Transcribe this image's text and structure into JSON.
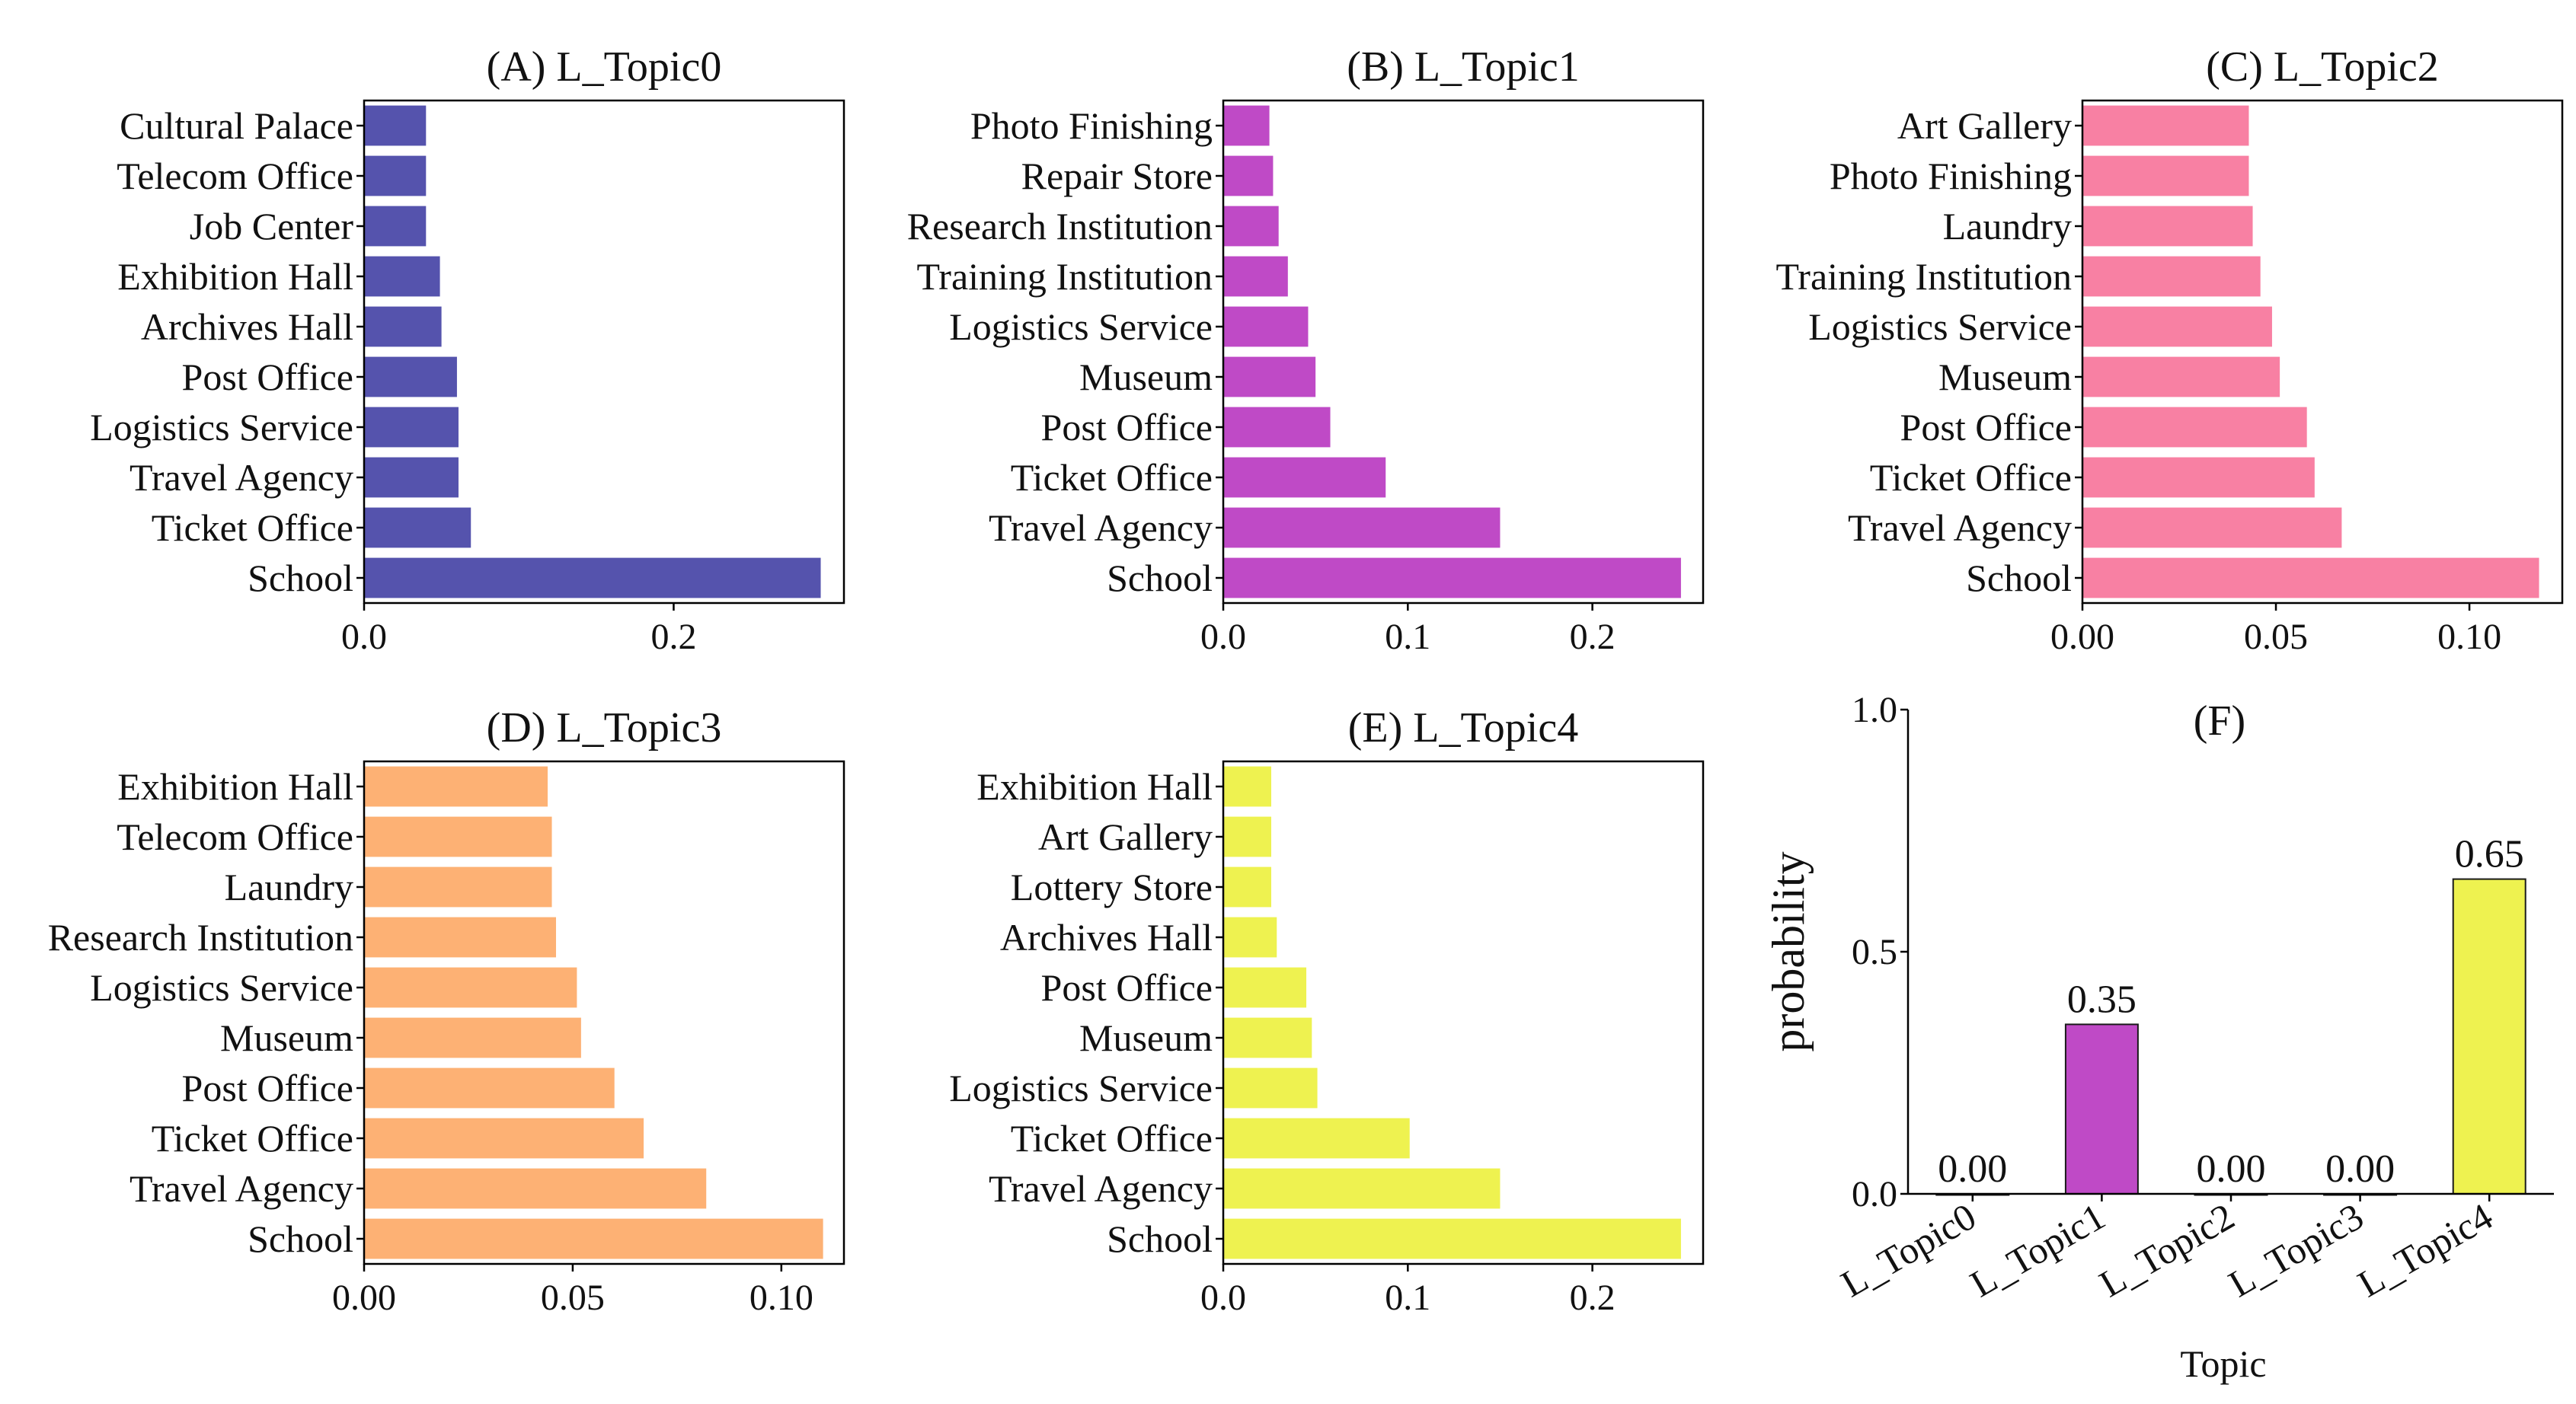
{
  "chart_data": [
    {
      "type": "bar",
      "orientation": "horizontal",
      "title": "(A) L_Topic0",
      "color": "#5553ad",
      "categories": [
        "Cultural Palace",
        "Telecom Office",
        "Job Center",
        "Exhibition Hall",
        "Archives Hall",
        "Post Office",
        "Logistics Service",
        "Travel Agency",
        "Ticket Office",
        "School"
      ],
      "values": [
        0.04,
        0.04,
        0.04,
        0.049,
        0.05,
        0.06,
        0.061,
        0.061,
        0.069,
        0.295
      ],
      "xlim": [
        0,
        0.31
      ],
      "ticks": [
        0.0,
        0.2
      ],
      "tick_labels": [
        "0.0",
        "0.2"
      ]
    },
    {
      "type": "bar",
      "orientation": "horizontal",
      "title": "(B) L_Topic1",
      "color": "#bf4ac6",
      "categories": [
        "Photo Finishing",
        "Repair Store",
        "Research Institution",
        "Training Institution",
        "Logistics Service",
        "Museum",
        "Post Office",
        "Ticket Office",
        "Travel Agency",
        "School"
      ],
      "values": [
        0.025,
        0.027,
        0.03,
        0.035,
        0.046,
        0.05,
        0.058,
        0.088,
        0.15,
        0.248
      ],
      "xlim": [
        0,
        0.26
      ],
      "ticks": [
        0.0,
        0.1,
        0.2
      ],
      "tick_labels": [
        "0.0",
        "0.1",
        "0.2"
      ]
    },
    {
      "type": "bar",
      "orientation": "horizontal",
      "title": "(C) L_Topic2",
      "color": "#f880a3",
      "categories": [
        "Art Gallery",
        "Photo Finishing",
        "Laundry",
        "Training Institution",
        "Logistics Service",
        "Museum",
        "Post Office",
        "Ticket Office",
        "Travel Agency",
        "School"
      ],
      "values": [
        0.043,
        0.043,
        0.044,
        0.046,
        0.049,
        0.051,
        0.058,
        0.06,
        0.067,
        0.118
      ],
      "xlim": [
        0,
        0.124
      ],
      "ticks": [
        0.0,
        0.05,
        0.1
      ],
      "tick_labels": [
        "0.00",
        "0.05",
        "0.10"
      ]
    },
    {
      "type": "bar",
      "orientation": "horizontal",
      "title": "(D) L_Topic3",
      "color": "#fdb174",
      "categories": [
        "Exhibition Hall",
        "Telecom Office",
        "Laundry",
        "Research Institution",
        "Logistics Service",
        "Museum",
        "Post Office",
        "Ticket Office",
        "Travel Agency",
        "School"
      ],
      "values": [
        0.044,
        0.045,
        0.045,
        0.046,
        0.051,
        0.052,
        0.06,
        0.067,
        0.082,
        0.11
      ],
      "xlim": [
        0,
        0.115
      ],
      "ticks": [
        0.0,
        0.05,
        0.1
      ],
      "tick_labels": [
        "0.00",
        "0.05",
        "0.10"
      ]
    },
    {
      "type": "bar",
      "orientation": "horizontal",
      "title": "(E) L_Topic4",
      "color": "#eef250",
      "categories": [
        "Exhibition Hall",
        "Art Gallery",
        "Lottery Store",
        "Archives Hall",
        "Post Office",
        "Museum",
        "Logistics Service",
        "Ticket Office",
        "Travel Agency",
        "School"
      ],
      "values": [
        0.026,
        0.026,
        0.026,
        0.029,
        0.045,
        0.048,
        0.051,
        0.101,
        0.15,
        0.248
      ],
      "xlim": [
        0,
        0.26
      ],
      "ticks": [
        0.0,
        0.1,
        0.2
      ],
      "tick_labels": [
        "0.0",
        "0.1",
        "0.2"
      ]
    },
    {
      "type": "bar",
      "orientation": "vertical",
      "title": "(F)",
      "categories": [
        "L_Topic0",
        "L_Topic1",
        "L_Topic2",
        "L_Topic3",
        "L_Topic4"
      ],
      "values": [
        0.0,
        0.35,
        0.0,
        0.0,
        0.65
      ],
      "data_labels": [
        "0.00",
        "0.35",
        "0.00",
        "0.00",
        "0.65"
      ],
      "colors": [
        "#5553ad",
        "#bf4ac6",
        "#f880a3",
        "#fdb174",
        "#eef250"
      ],
      "xlabel": "Topic",
      "ylabel": "probability",
      "ylim": [
        0,
        1.0
      ],
      "ticks": [
        0.0,
        0.5,
        1.0
      ],
      "tick_labels": [
        "0.0",
        "0.5",
        "1.0"
      ]
    }
  ]
}
